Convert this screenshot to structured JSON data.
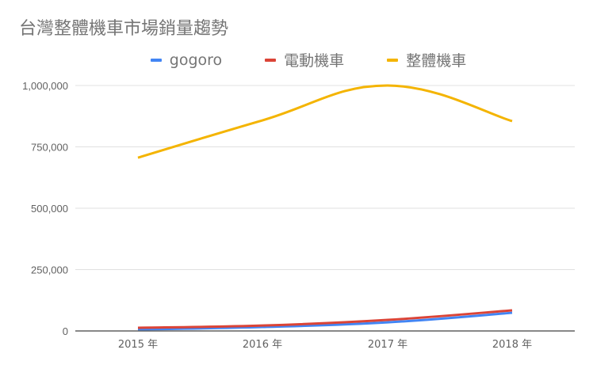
{
  "chart_data": {
    "type": "line",
    "title": "台灣整體機車市場銷量趨勢",
    "xlabel": "",
    "ylabel": "",
    "categories": [
      "2015 年",
      "2016 年",
      "2017 年",
      "2018 年"
    ],
    "series": [
      {
        "name": "gogoro",
        "color": "#4285f4",
        "values": [
          6000,
          16000,
          35000,
          74000
        ]
      },
      {
        "name": "電動機車",
        "color": "#db4437",
        "values": [
          13000,
          22000,
          45000,
          84000
        ]
      },
      {
        "name": "整體機車",
        "color": "#f4b400",
        "values": [
          706000,
          858000,
          1000000,
          855000
        ]
      }
    ],
    "ylim": [
      0,
      1000000
    ],
    "yticks": [
      0,
      250000,
      500000,
      750000,
      1000000
    ],
    "ytick_labels": [
      "0",
      "250,000",
      "500,000",
      "750,000",
      "1,000,000"
    ],
    "grid": true,
    "legend_position": "top",
    "smooth": true
  }
}
